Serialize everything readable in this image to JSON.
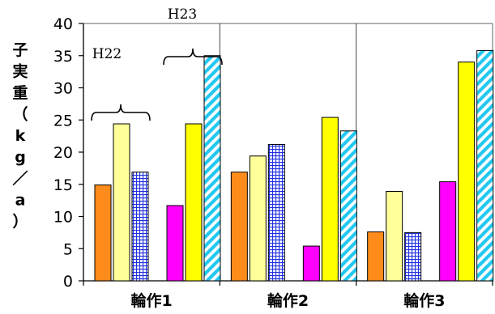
{
  "chart_data": {
    "type": "bar",
    "ylabel": "子実重（kg／a）",
    "ylim": [
      0,
      40
    ],
    "yticks": [
      0,
      5,
      10,
      15,
      20,
      25,
      30,
      35,
      40
    ],
    "grid": false,
    "legend": "none",
    "groups": [
      {
        "label": "輪作1",
        "bars": [
          {
            "value": 14.9,
            "fill": "#FF8C1A",
            "pattern": "none"
          },
          {
            "value": 24.4,
            "fill": "#FFFF99",
            "pattern": "none"
          },
          {
            "value": 16.9,
            "fill": "#FFFFFF",
            "pattern": "grid-blue"
          },
          {
            "value": 11.7,
            "fill": "#FF00FF",
            "pattern": "none"
          },
          {
            "value": 24.4,
            "fill": "#FFFF00",
            "pattern": "none"
          },
          {
            "value": 35.0,
            "fill": "#FFFFFF",
            "pattern": "diag-cyan"
          }
        ]
      },
      {
        "label": "輪作2",
        "bars": [
          {
            "value": 16.9,
            "fill": "#FF8C1A",
            "pattern": "none"
          },
          {
            "value": 19.4,
            "fill": "#FFFF99",
            "pattern": "none"
          },
          {
            "value": 21.2,
            "fill": "#FFFFFF",
            "pattern": "grid-blue"
          },
          {
            "value": 5.4,
            "fill": "#FF00FF",
            "pattern": "none"
          },
          {
            "value": 25.4,
            "fill": "#FFFF00",
            "pattern": "none"
          },
          {
            "value": 23.3,
            "fill": "#FFFFFF",
            "pattern": "diag-cyan"
          }
        ]
      },
      {
        "label": "輪作3",
        "bars": [
          {
            "value": 7.6,
            "fill": "#FF8C1A",
            "pattern": "none"
          },
          {
            "value": 13.9,
            "fill": "#FFFF99",
            "pattern": "none"
          },
          {
            "value": 7.5,
            "fill": "#FFFFFF",
            "pattern": "grid-blue"
          },
          {
            "value": 15.4,
            "fill": "#FF00FF",
            "pattern": "none"
          },
          {
            "value": 34.0,
            "fill": "#FFFF00",
            "pattern": "none"
          },
          {
            "value": 35.8,
            "fill": "#FFFFFF",
            "pattern": "diag-cyan"
          }
        ]
      }
    ],
    "annotations": [
      {
        "text": "H22",
        "group": 0,
        "bars": [
          0,
          2
        ]
      },
      {
        "text": "H23",
        "group": 0,
        "bars": [
          3,
          5
        ]
      }
    ]
  }
}
